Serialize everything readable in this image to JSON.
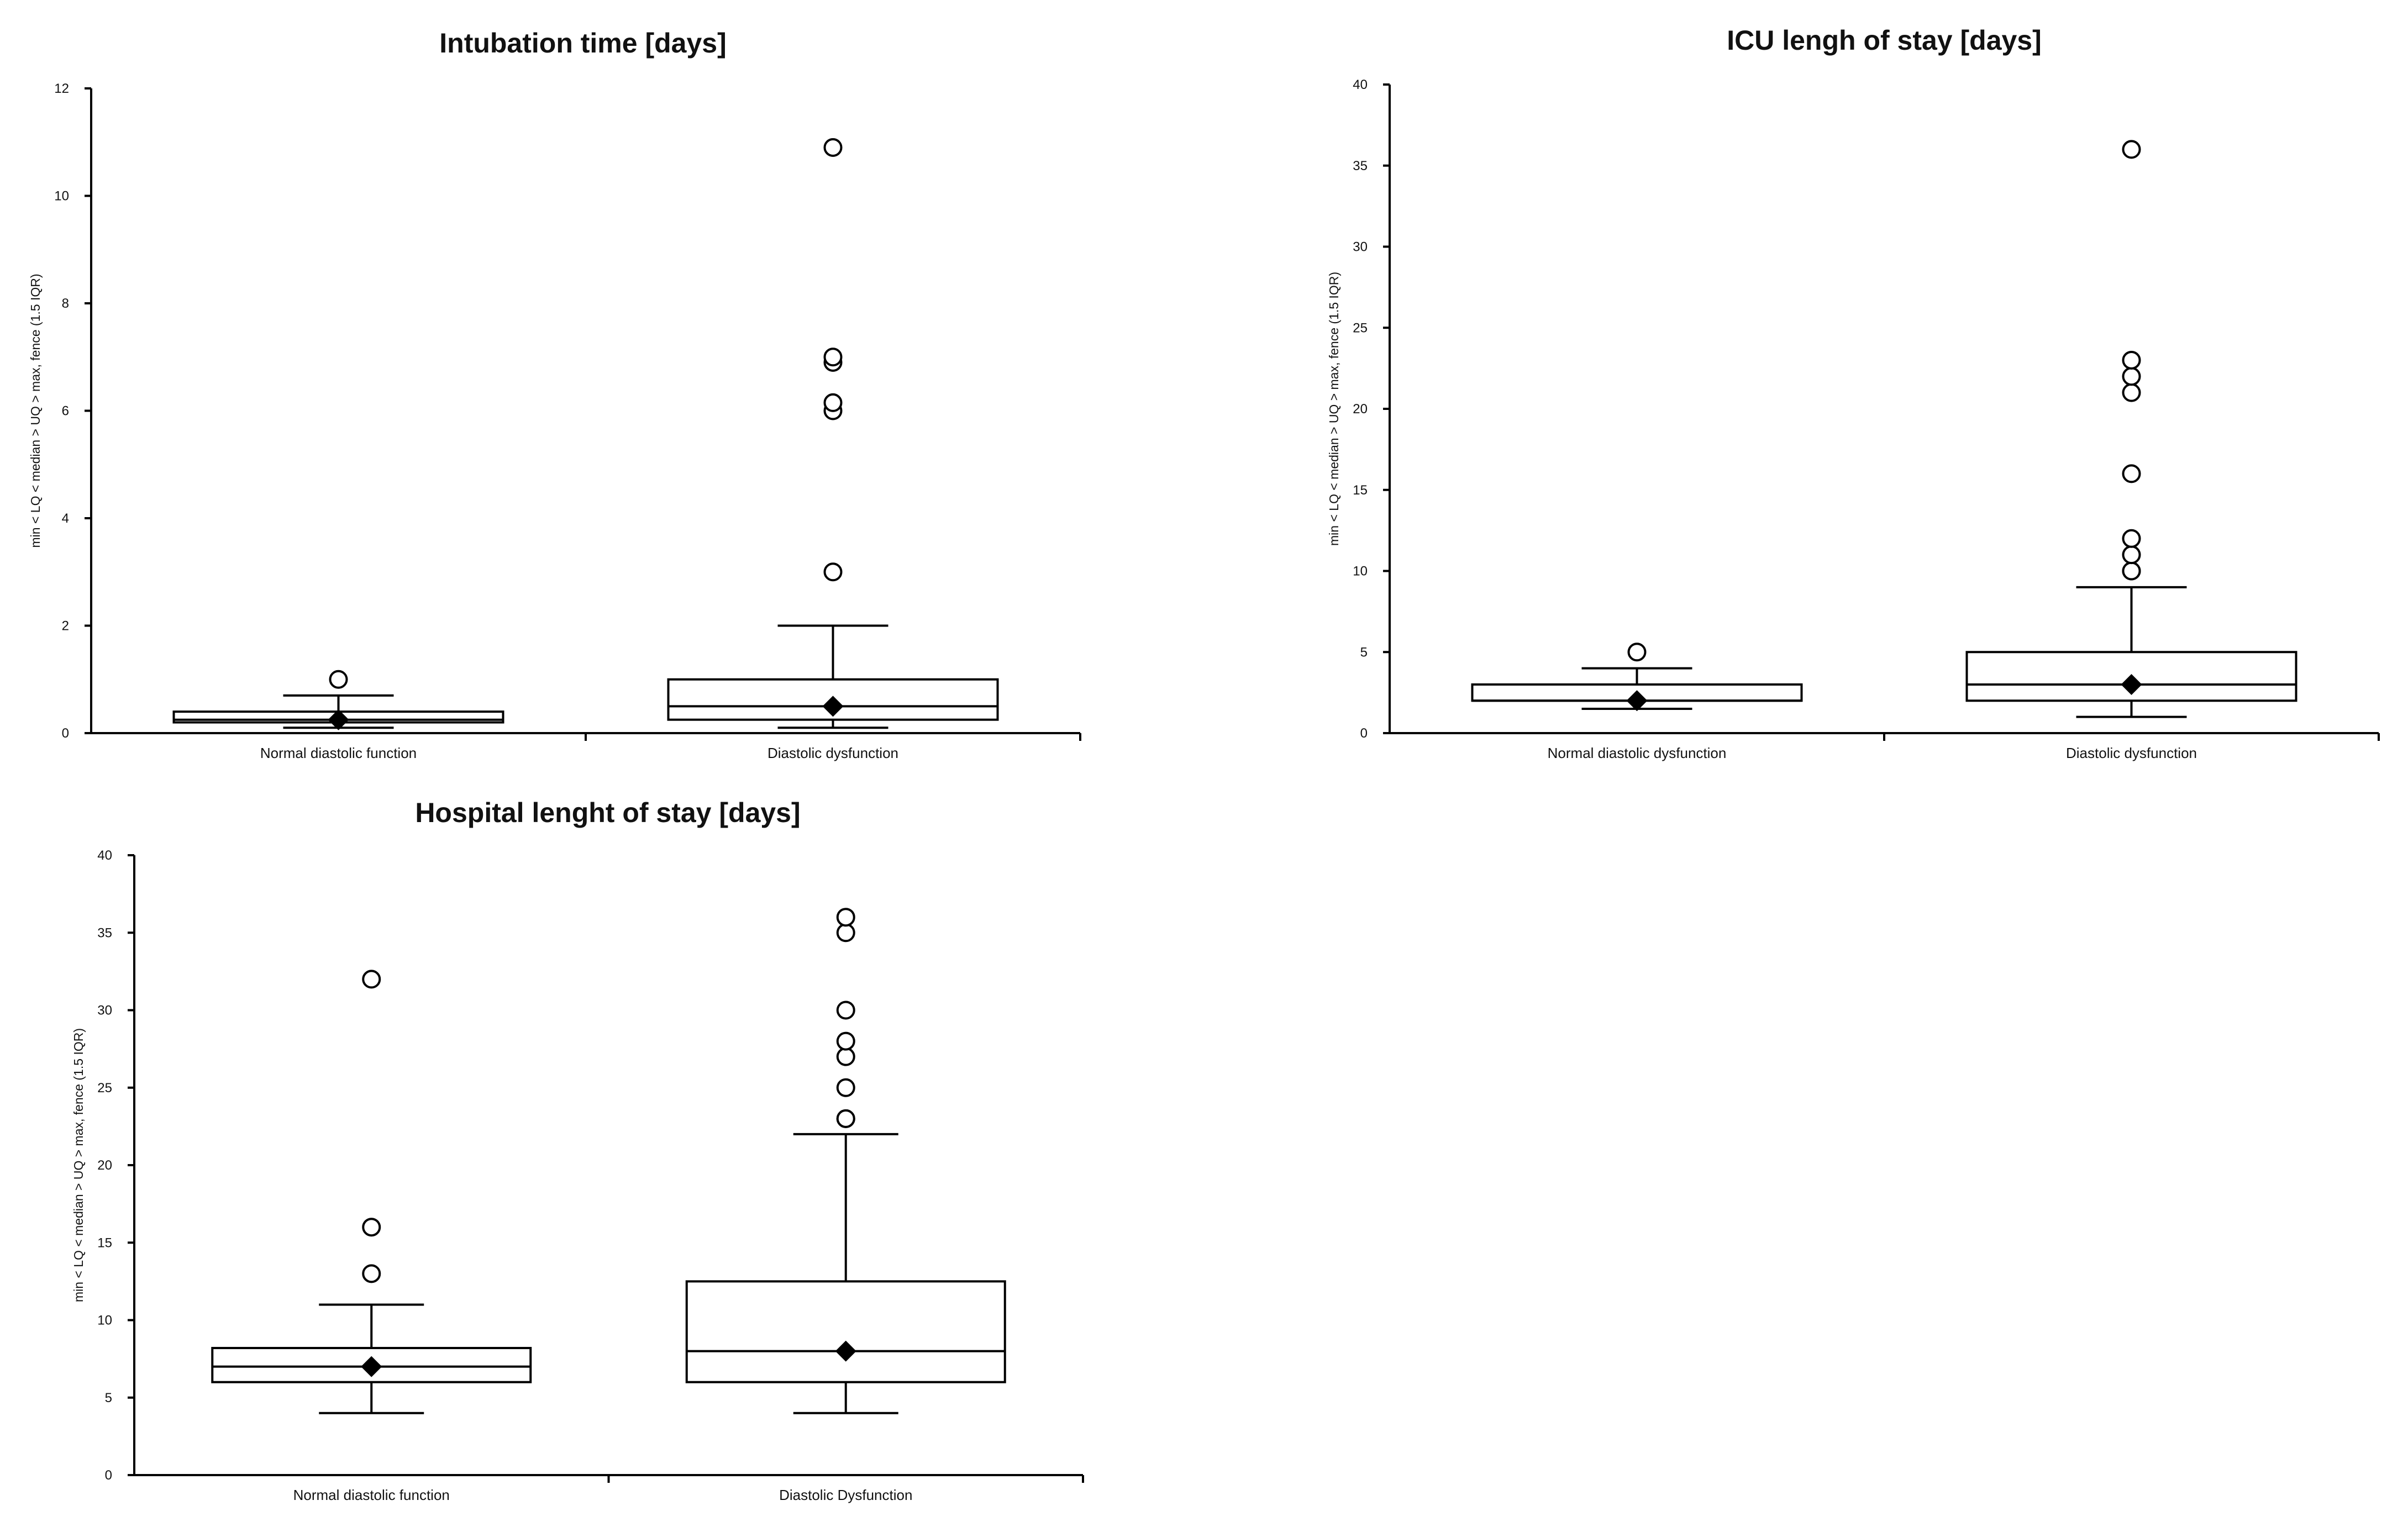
{
  "chart_data": [
    {
      "type": "box",
      "title": "Intubation time [days]",
      "ylabel": "min < LQ < median > UQ > max, fence (1.5 IQR)",
      "ylim": [
        0,
        12
      ],
      "yticks": [
        0,
        2,
        4,
        6,
        8,
        10,
        12
      ],
      "categories": [
        "Normal diastolic function",
        "Diastolic dysfunction"
      ],
      "boxes": [
        {
          "min": 0.1,
          "q1": 0.2,
          "median": 0.25,
          "q3": 0.4,
          "max": 0.7,
          "mean": 0.25,
          "outliers": [
            1.0
          ]
        },
        {
          "min": 0.1,
          "q1": 0.25,
          "median": 0.5,
          "q3": 1.0,
          "max": 2.0,
          "mean": 0.5,
          "outliers": [
            3.0,
            6.0,
            6.15,
            6.9,
            7.0,
            10.9
          ]
        }
      ]
    },
    {
      "type": "box",
      "title": "ICU lengh of stay [days]",
      "ylabel": "min < LQ < median > UQ > max, fence (1.5 IQR)",
      "ylim": [
        0,
        40
      ],
      "yticks": [
        0,
        5,
        10,
        15,
        20,
        25,
        30,
        35,
        40
      ],
      "categories": [
        "Normal diastolic dysfunction",
        "Diastolic dysfunction"
      ],
      "boxes": [
        {
          "min": 1.5,
          "q1": 2,
          "median": 2,
          "q3": 3,
          "max": 4,
          "mean": 2,
          "outliers": [
            5
          ]
        },
        {
          "min": 1,
          "q1": 2,
          "median": 3,
          "q3": 5,
          "max": 9,
          "mean": 3,
          "outliers": [
            10,
            10,
            11,
            12,
            16,
            21,
            22,
            23,
            36
          ]
        }
      ]
    },
    {
      "type": "box",
      "title": "Hospital lenght of stay [days]",
      "ylabel": "min < LQ < median > UQ > max, fence (1.5 IQR)",
      "ylim": [
        0,
        40
      ],
      "yticks": [
        0,
        5,
        10,
        15,
        20,
        25,
        30,
        35,
        40
      ],
      "categories": [
        "Normal diastolic function",
        "Diastolic Dysfunction"
      ],
      "boxes": [
        {
          "min": 4,
          "q1": 6,
          "median": 7,
          "q3": 8.2,
          "max": 11,
          "mean": 7,
          "outliers": [
            13,
            16,
            32
          ]
        },
        {
          "min": 4,
          "q1": 6,
          "median": 8,
          "q3": 12.5,
          "max": 22,
          "mean": 8,
          "outliers": [
            23,
            23,
            25,
            27,
            28,
            30,
            35,
            36
          ]
        }
      ]
    }
  ]
}
